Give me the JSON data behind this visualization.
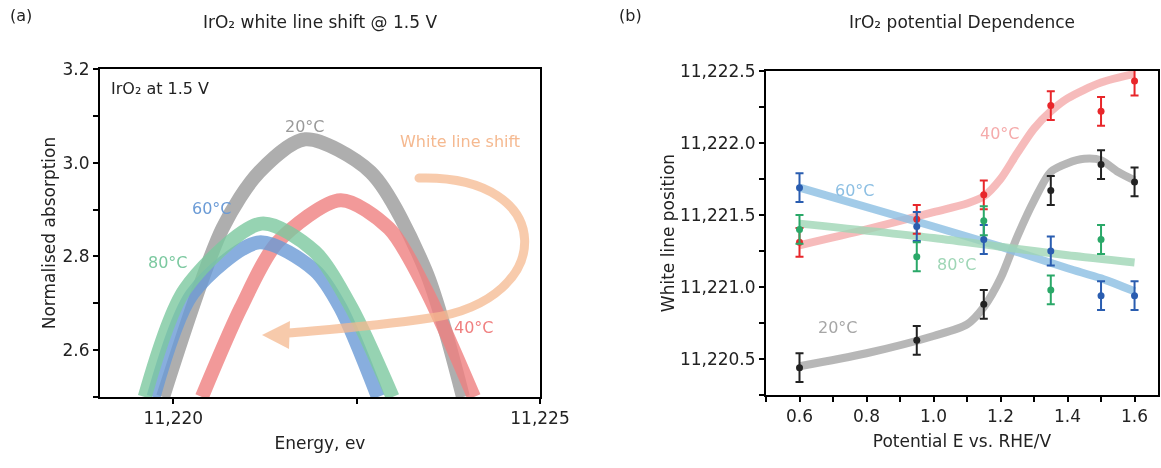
{
  "chart_data": [
    {
      "type": "line",
      "title": "IrO₂ white line shift @ 1.5 V",
      "xlabel": "Energy, ev",
      "ylabel": "Normalised absorption",
      "annotations": [
        "(a)",
        "IrO₂ at 1.5 V",
        "White line shift"
      ],
      "xlim": [
        11219,
        11225
      ],
      "ylim": [
        2.5,
        3.2
      ],
      "xticks": [
        {
          "value": 11220,
          "label": "11,220"
        },
        {
          "value": 11222.5,
          "label": null
        },
        {
          "value": 11225,
          "label": "11,225"
        }
      ],
      "yticks": [
        {
          "value": 2.5,
          "label": null
        },
        {
          "value": 2.6,
          "label": "2.6"
        },
        {
          "value": 2.7,
          "label": null
        },
        {
          "value": 2.8,
          "label": "2.8"
        },
        {
          "value": 2.9,
          "label": null
        },
        {
          "value": 3.0,
          "label": "3.0"
        },
        {
          "value": 3.1,
          "label": null
        },
        {
          "value": 3.2,
          "label": "3.2"
        }
      ],
      "series": [
        {
          "name": "20°C",
          "color": "#9a9a9a",
          "x": [
            11219.86,
            11220.67,
            11221.17,
            11221.8,
            11222.69,
            11223.44,
            11223.95
          ],
          "values": [
            2.5,
            2.86,
            2.98,
            3.05,
            2.98,
            2.77,
            2.5
          ]
        },
        {
          "name": "40°C",
          "color": "#f08080",
          "x": [
            11220.39,
            11220.92,
            11221.42,
            11222.28,
            11222.94,
            11223.44,
            11224.1
          ],
          "values": [
            2.5,
            2.69,
            2.83,
            2.92,
            2.86,
            2.73,
            2.5
          ]
        },
        {
          "name": "60°C",
          "color": "#6b9bd6",
          "x": [
            11219.73,
            11220.26,
            11221.17,
            11221.93,
            11222.28,
            11222.79
          ],
          "values": [
            2.5,
            2.72,
            2.83,
            2.77,
            2.69,
            2.5
          ]
        },
        {
          "name": "80°C",
          "color": "#7cc9a0",
          "x": [
            11219.61,
            11220.16,
            11221.2,
            11221.93,
            11222.43,
            11222.99
          ],
          "values": [
            2.5,
            2.73,
            2.87,
            2.81,
            2.69,
            2.5
          ]
        }
      ]
    },
    {
      "type": "scatter",
      "title": "IrO₂ potential Dependence",
      "xlabel": "Potential E vs. RHE/V",
      "ylabel": "White line position",
      "annotations": [
        "(b)"
      ],
      "xlim": [
        0.5,
        1.67
      ],
      "ylim": [
        11220.25,
        11222.5
      ],
      "xticks": [
        {
          "value": 0.5,
          "label": null
        },
        0.6,
        {
          "value": 0.7,
          "label": null
        },
        0.8,
        {
          "value": 0.9,
          "label": null
        },
        {
          "value": 1.0,
          "label": "1.0"
        },
        {
          "value": 1.1,
          "label": null
        },
        1.2,
        {
          "value": 1.3,
          "label": null
        },
        1.4,
        {
          "value": 1.5,
          "label": null
        },
        1.6
      ],
      "yticks": [
        {
          "value": 11220.25,
          "label": null
        },
        {
          "value": 11220.5,
          "label": "11,220.5"
        },
        {
          "value": 11220.75,
          "label": null
        },
        {
          "value": 11221.0,
          "label": "11,221.0"
        },
        {
          "value": 11221.25,
          "label": null
        },
        {
          "value": 11221.5,
          "label": "11,221.5"
        },
        {
          "value": 11221.75,
          "label": null
        },
        {
          "value": 11222.0,
          "label": "11,222.0"
        },
        {
          "value": 11222.25,
          "label": null
        },
        {
          "value": 11222.5,
          "label": "11,222.5"
        }
      ],
      "series": [
        {
          "type": "line",
          "name": "20°C",
          "color": "#a6a6a6",
          "x": [
            0.6,
            0.8,
            1.0,
            1.1,
            1.15,
            1.2,
            1.25,
            1.3,
            1.35,
            1.4,
            1.45,
            1.5,
            1.55,
            1.6
          ],
          "values": [
            11220.45,
            11220.54,
            11220.66,
            11220.74,
            11220.86,
            11221.06,
            11221.35,
            11221.6,
            11221.8,
            11221.86,
            11221.89,
            11221.88,
            11221.8,
            11221.74
          ]
        },
        {
          "type": "line",
          "name": "40°C",
          "color": "#f5abab",
          "x": [
            0.6,
            0.8,
            1.0,
            1.1,
            1.15,
            1.2,
            1.25,
            1.3,
            1.35,
            1.4,
            1.5,
            1.6
          ],
          "values": [
            11221.29,
            11221.4,
            11221.52,
            11221.58,
            11221.63,
            11221.75,
            11221.93,
            11222.1,
            11222.22,
            11222.31,
            11222.42,
            11222.48
          ]
        },
        {
          "type": "line",
          "name": "60°C",
          "color": "#8cbfe3",
          "x": [
            0.6,
            1.0,
            1.2,
            1.4,
            1.5,
            1.6
          ],
          "values": [
            11221.69,
            11221.42,
            11221.28,
            11221.13,
            11221.06,
            11220.97
          ]
        },
        {
          "type": "line",
          "name": "80°C",
          "color": "#9fd6b6",
          "x": [
            0.6,
            1.0,
            1.2,
            1.4,
            1.6
          ],
          "values": [
            11221.44,
            11221.34,
            11221.28,
            11221.22,
            11221.17
          ]
        },
        {
          "marker": "circle",
          "color": "#222222",
          "x": [
            0.6,
            0.95,
            1.15,
            1.35,
            1.5,
            1.6
          ],
          "values": [
            11220.44,
            11220.63,
            11220.88,
            11221.67,
            11221.85,
            11221.73
          ],
          "errors": [
            0.1,
            0.1,
            0.1,
            0.1,
            0.1,
            0.1
          ]
        },
        {
          "marker": "circle",
          "color": "#e8262a",
          "x": [
            0.6,
            0.95,
            1.15,
            1.35,
            1.5,
            1.6
          ],
          "values": [
            11221.31,
            11221.47,
            11221.64,
            11222.26,
            11222.22,
            11222.43
          ],
          "errors": [
            0.1,
            0.1,
            0.1,
            0.1,
            0.1,
            0.1
          ]
        },
        {
          "marker": "circle",
          "color": "#2a5db0",
          "x": [
            0.6,
            0.95,
            1.15,
            1.35,
            1.5,
            1.6
          ],
          "values": [
            11221.69,
            11221.42,
            11221.33,
            11221.25,
            11220.94,
            11220.94
          ],
          "errors": [
            0.1,
            0.1,
            0.1,
            0.1,
            0.1,
            0.1
          ]
        },
        {
          "marker": "circle",
          "color": "#2aa868",
          "x": [
            0.6,
            0.95,
            1.15,
            1.35,
            1.5
          ],
          "values": [
            11221.4,
            11221.21,
            11221.46,
            11220.98,
            11221.33
          ],
          "errors": [
            0.1,
            0.1,
            0.1,
            0.1,
            0.1
          ]
        }
      ]
    }
  ]
}
